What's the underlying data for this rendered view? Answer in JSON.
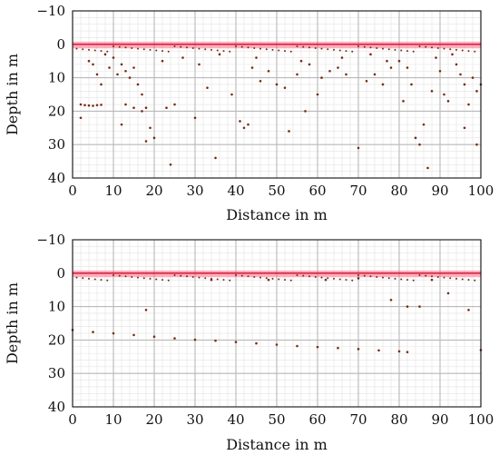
{
  "chart_data": [
    {
      "type": "scatter",
      "title": "",
      "xlabel": "Distance in m",
      "ylabel": "Depth in m",
      "xlim": [
        0,
        100
      ],
      "ylim": [
        40,
        -10
      ],
      "y_inverted": true,
      "xticks": [
        0,
        10,
        20,
        30,
        40,
        50,
        60,
        70,
        80,
        90,
        100
      ],
      "yticks": [
        -10,
        0,
        10,
        20,
        30,
        40
      ],
      "ytick_labels": [
        "−10",
        "0",
        "10",
        "20",
        "30",
        "40"
      ],
      "grid": true,
      "minor_grid": true,
      "band_color": "#ff4b6e",
      "point_color": "#7a2a10",
      "series": [
        {
          "points": [
            [
              2,
              18
            ],
            [
              3,
              18.2
            ],
            [
              4,
              18.3
            ],
            [
              5,
              18.4
            ],
            [
              6,
              18.2
            ],
            [
              7,
              18.1
            ],
            [
              5,
              6
            ],
            [
              6,
              9
            ],
            [
              7,
              12
            ],
            [
              9,
              7
            ],
            [
              11,
              9
            ],
            [
              12,
              6
            ],
            [
              13,
              8
            ],
            [
              14,
              10
            ],
            [
              15,
              7
            ],
            [
              16,
              12
            ],
            [
              17,
              15
            ],
            [
              18,
              19
            ],
            [
              13,
              18
            ],
            [
              15,
              19
            ],
            [
              17,
              20
            ],
            [
              19,
              25
            ],
            [
              20,
              28
            ],
            [
              23,
              19
            ],
            [
              24,
              36
            ],
            [
              30,
              22
            ],
            [
              33,
              13
            ],
            [
              35,
              34
            ],
            [
              39,
              15
            ],
            [
              41,
              23
            ],
            [
              42,
              25
            ],
            [
              44,
              7
            ],
            [
              46,
              11
            ],
            [
              48,
              8
            ],
            [
              50,
              12
            ],
            [
              52,
              13
            ],
            [
              53,
              26
            ],
            [
              55,
              9
            ],
            [
              58,
              6
            ],
            [
              60,
              15
            ],
            [
              61,
              10
            ],
            [
              63,
              8
            ],
            [
              65,
              7
            ],
            [
              67,
              9
            ],
            [
              70,
              31
            ],
            [
              72,
              11
            ],
            [
              74,
              9
            ],
            [
              76,
              12
            ],
            [
              78,
              7
            ],
            [
              80,
              5
            ],
            [
              82,
              7
            ],
            [
              83,
              12
            ],
            [
              84,
              28
            ],
            [
              85,
              30
            ],
            [
              86,
              24
            ],
            [
              87,
              37
            ],
            [
              88,
              14
            ],
            [
              90,
              8
            ],
            [
              91,
              15
            ],
            [
              92,
              17
            ],
            [
              94,
              6
            ],
            [
              95,
              9
            ],
            [
              96,
              12
            ],
            [
              97,
              18
            ],
            [
              98,
              10
            ],
            [
              99,
              14
            ],
            [
              99,
              30
            ],
            [
              100,
              12
            ],
            [
              4,
              5
            ],
            [
              8,
              3
            ],
            [
              10,
              4
            ],
            [
              22,
              5
            ],
            [
              27,
              4
            ],
            [
              31,
              6
            ],
            [
              36,
              3
            ],
            [
              45,
              4
            ],
            [
              56,
              5
            ],
            [
              66,
              4
            ],
            [
              73,
              3
            ],
            [
              77,
              5
            ],
            [
              89,
              4
            ],
            [
              93,
              3
            ],
            [
              96,
              25
            ],
            [
              18,
              29
            ],
            [
              25,
              18
            ],
            [
              43,
              24
            ],
            [
              57,
              20
            ],
            [
              81,
              17
            ],
            [
              2,
              22
            ],
            [
              12,
              24
            ]
          ]
        },
        {
          "points": [
            [
              0,
              17
            ],
            [
              5,
              17.6
            ],
            [
              10,
              18
            ],
            [
              15,
              18.5
            ],
            [
              20,
              19
            ],
            [
              25,
              19.5
            ],
            [
              30,
              19.9
            ],
            [
              35,
              20.2
            ],
            [
              40,
              20.6
            ],
            [
              45,
              21
            ],
            [
              50,
              21.4
            ],
            [
              55,
              21.8
            ],
            [
              60,
              22.1
            ],
            [
              65,
              22.4
            ],
            [
              70,
              22.7
            ],
            [
              75,
              23.1
            ],
            [
              80,
              23.4
            ],
            [
              82,
              23.6
            ],
            [
              18,
              11
            ],
            [
              78,
              8
            ],
            [
              82,
              10
            ],
            [
              85,
              10
            ],
            [
              92,
              6
            ],
            [
              97,
              11
            ],
            [
              100,
              23
            ],
            [
              34,
              2
            ],
            [
              48,
              2
            ],
            [
              62,
              2
            ],
            [
              70,
              1.5
            ],
            [
              88,
              2
            ]
          ]
        }
      ]
    }
  ]
}
